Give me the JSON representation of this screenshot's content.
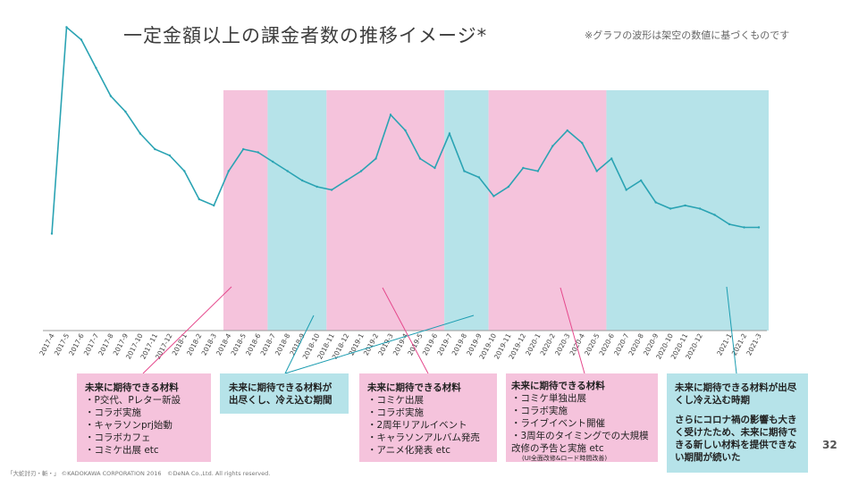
{
  "title": "一定金額以上の課金者数の推移イメージ*",
  "note": "※グラフの波形は架空の数値に基づくものです",
  "page_number": "32",
  "copyright": "「大蛇討刃・斬・」 ©KADOKAWA CORPORATION 2016　©DeNA Co.,Ltd. All rights reserved.",
  "colors": {
    "line": "#2aa3b3",
    "pink": "#f5c3dc",
    "cyan": "#b6e3e9",
    "magenta": "#e5488c",
    "teal": "#1a9cb0"
  },
  "chart_data": {
    "type": "line",
    "title": "一定金額以上の課金者数の推移イメージ*",
    "ylim": [
      0,
      100
    ],
    "x": [
      "2017-4",
      "2017-5",
      "2017-6",
      "2017-7",
      "2017-8",
      "2017-9",
      "2017-10",
      "2017-11",
      "2017-12",
      "2018-1",
      "2018-2",
      "2018-3",
      "2018-4",
      "2018-5",
      "2018-6",
      "2018-7",
      "2018-8",
      "2018-9",
      "2018-10",
      "2018-11",
      "2018-12",
      "2019-1",
      "2019-2",
      "2019-3",
      "2019-4",
      "2019-5",
      "2019-6",
      "2019-7",
      "2019-8",
      "2019-9",
      "2019-10",
      "2019-11",
      "2019-12",
      "2020-1",
      "2020-2",
      "2020-3",
      "2020-4",
      "2020-5",
      "2020-6",
      "2020-7",
      "2020-8",
      "2020-9",
      "2020-10",
      "2020-11",
      "2020-12",
      "",
      "2021-1",
      "2021-2",
      "2021-3"
    ],
    "values": [
      31,
      97,
      93,
      84,
      75,
      70,
      63,
      58,
      56,
      51,
      42,
      40,
      51,
      58,
      57,
      54,
      51,
      48,
      46,
      45,
      48,
      51,
      55,
      69,
      64,
      55,
      52,
      63,
      51,
      49,
      43,
      46,
      52,
      51,
      59,
      64,
      60,
      51,
      55,
      45,
      48,
      41,
      39,
      40,
      39,
      37,
      34,
      33,
      33
    ],
    "bands": [
      {
        "from": 12,
        "to": 15,
        "kind": "pink"
      },
      {
        "from": 15,
        "to": 19,
        "kind": "cyan"
      },
      {
        "from": 19,
        "to": 27,
        "kind": "pink"
      },
      {
        "from": 27,
        "to": 30,
        "kind": "cyan"
      },
      {
        "from": 30,
        "to": 38,
        "kind": "pink"
      },
      {
        "from": 38,
        "to": 48,
        "kind": "cyan"
      }
    ]
  },
  "boxes": [
    {
      "heading": "未来に期待できる材料",
      "items": [
        "P交代、Pレター新設",
        "コラボ実施",
        "キャラソンprj始動",
        "コラボカフェ",
        "コミケ出展 etc"
      ]
    },
    {
      "heading": "未来に期待できる材料が出尽くし、冷え込む期間"
    },
    {
      "heading": "未来に期待できる材料",
      "items": [
        "コミケ出展",
        "コラボ実施",
        "2周年リアルイベント",
        "キャラソンアルバム発売",
        "アニメ化発表 etc"
      ]
    },
    {
      "heading": "未来に期待できる材料",
      "items": [
        "コミケ単独出展",
        "コラボ実施",
        "ライブイベント開催",
        "3周年のタイミングでの大規模改修の予告と実施 etc"
      ],
      "sub": "(UI全面改修&ロード時間改善)"
    },
    {
      "heading": "未来に期待できる材料が出尽くし冷え込む時期",
      "para": "さらにコロナ禍の影響も大きく受けたため、未来に期待できる新しい材料を提供できない期間が続いた"
    }
  ]
}
